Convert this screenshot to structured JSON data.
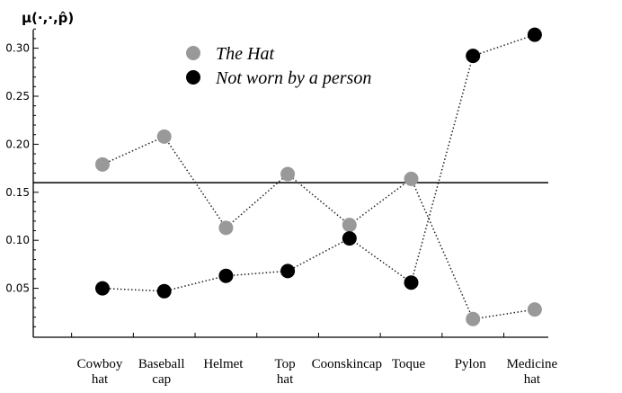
{
  "chart_data": {
    "type": "line",
    "ylabel": "μ(·,·,p̂)",
    "ylim": [
      0,
      0.33
    ],
    "yticks": [
      0.05,
      0.1,
      0.15,
      0.2,
      0.25,
      0.3
    ],
    "ytick_labels": [
      "0.05",
      "0.10",
      "0.15",
      "0.20",
      "0.25",
      "0.30"
    ],
    "categories": [
      [
        "Cowboy",
        "hat"
      ],
      [
        "Baseball",
        "cap"
      ],
      [
        "Helmet"
      ],
      [
        "Top",
        "hat"
      ],
      [
        "Coonskincap"
      ],
      [
        "Toque"
      ],
      [
        "Pylon"
      ],
      [
        "Medicine",
        "hat"
      ]
    ],
    "reference_line": 0.16,
    "series": [
      {
        "name": "The Hat",
        "color": "#999999",
        "values": [
          0.179,
          0.208,
          0.113,
          0.169,
          0.116,
          0.164,
          0.018,
          0.028
        ]
      },
      {
        "name": "Not worn by a person",
        "color": "#000000",
        "values": [
          0.05,
          0.047,
          0.063,
          0.068,
          0.102,
          0.056,
          0.292,
          0.314
        ]
      }
    ],
    "legend_position": "top-center",
    "grid": false
  }
}
